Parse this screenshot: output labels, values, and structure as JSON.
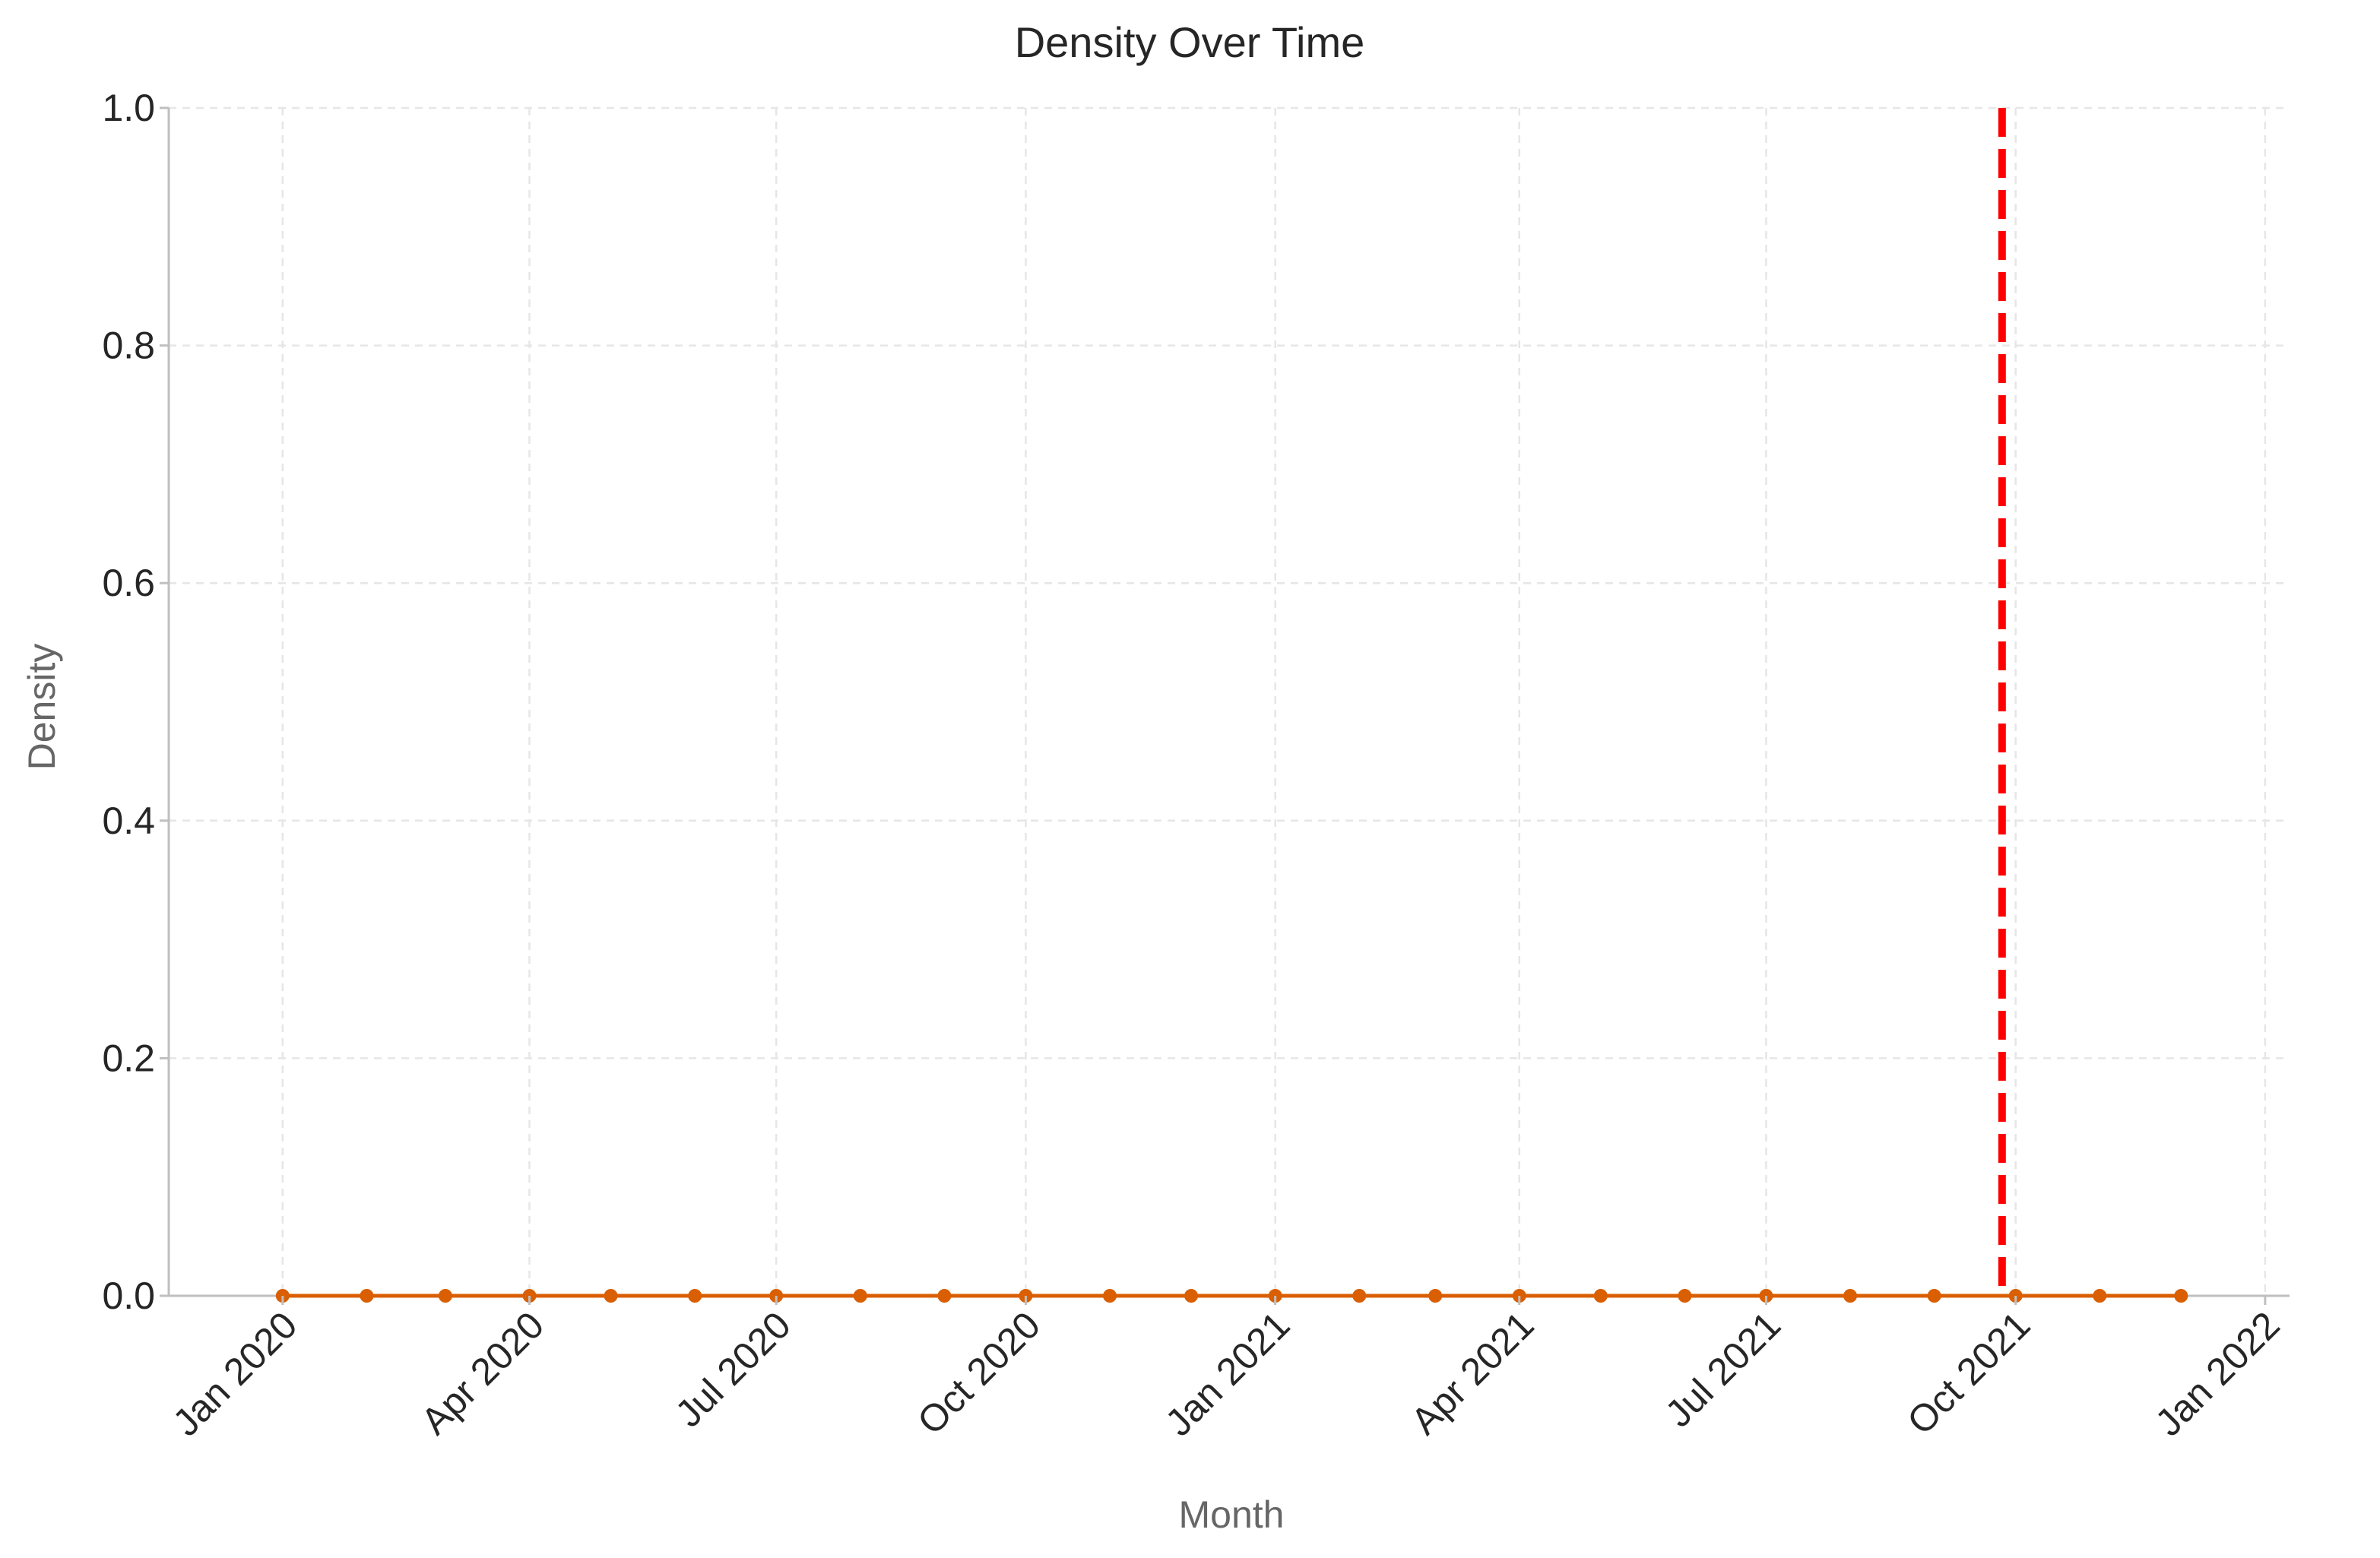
{
  "chart_data": {
    "type": "line",
    "title": "Density Over Time",
    "xlabel": "Month",
    "ylabel": "Density",
    "ylim": [
      0,
      1
    ],
    "yticks": [
      0.0,
      0.2,
      0.4,
      0.6,
      0.8,
      1.0
    ],
    "ytick_labels": [
      "0.0",
      "0.2",
      "0.4",
      "0.6",
      "0.8",
      "1.0"
    ],
    "xlim": [
      "2019-11-20",
      "2022-01-10"
    ],
    "xticks": [
      "2020-01-01",
      "2020-04-01",
      "2020-07-01",
      "2020-10-01",
      "2021-01-01",
      "2021-04-01",
      "2021-07-01",
      "2021-10-01",
      "2022-01-01"
    ],
    "xtick_labels": [
      "Jan 2020",
      "Apr 2020",
      "Jul 2020",
      "Oct 2020",
      "Jan 2021",
      "Apr 2021",
      "Jul 2021",
      "Oct 2021",
      "Jan 2022"
    ],
    "grid": true,
    "series": [
      {
        "x": [
          "2020-01-01",
          "2020-02-01",
          "2020-03-01",
          "2020-04-01",
          "2020-05-01",
          "2020-06-01",
          "2020-07-01",
          "2020-08-01",
          "2020-09-01",
          "2020-10-01",
          "2020-11-01",
          "2020-12-01",
          "2021-01-01",
          "2021-02-01",
          "2021-03-01",
          "2021-04-01",
          "2021-05-01",
          "2021-06-01",
          "2021-07-01",
          "2021-08-01",
          "2021-09-01",
          "2021-10-01",
          "2021-11-01",
          "2021-12-01"
        ],
        "values": [
          0,
          0,
          0,
          0,
          0,
          0,
          0,
          0,
          0,
          0,
          0,
          0,
          0,
          0,
          0,
          0,
          0,
          0,
          0,
          0,
          0,
          0,
          0,
          0
        ],
        "color": "#d95f02"
      }
    ],
    "vlines": [
      {
        "x": "2021-09-26",
        "color": "#ff0000",
        "style": "dashed"
      }
    ]
  }
}
